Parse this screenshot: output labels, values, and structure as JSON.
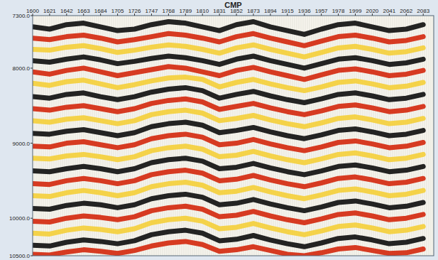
{
  "chart_data": {
    "type": "seismic",
    "x_label": "CMP",
    "x": [
      1600,
      1621,
      1642,
      1663,
      1684,
      1705,
      1726,
      1747,
      1768,
      1789,
      1810,
      1831,
      1852,
      1873,
      1894,
      1915,
      1936,
      1957,
      1978,
      1999,
      2020,
      2041,
      2062,
      2083
    ],
    "xlim": [
      1600,
      2096
    ],
    "xticks": [
      1600,
      1621,
      1642,
      1663,
      1684,
      1705,
      1726,
      1747,
      1768,
      1789,
      1810,
      1831,
      1852,
      1873,
      1894,
      1915,
      1936,
      1957,
      1978,
      1999,
      2020,
      2041,
      2062,
      2083
    ],
    "ylim": [
      7300,
      10500
    ],
    "yticks": [
      {
        "value": 7300,
        "label": "7300.0"
      },
      {
        "value": 8000,
        "label": "8000.0"
      },
      {
        "value": 9000,
        "label": "9000.0"
      },
      {
        "value": 10000,
        "label": "10000.0"
      },
      {
        "value": 10500,
        "label": "10500.0"
      }
    ],
    "series": [
      {
        "color": "#111111",
        "values": [
          7450,
          7480,
          7420,
          7400,
          7450,
          7500,
          7480,
          7420,
          7380,
          7400,
          7450,
          7500,
          7420,
          7380,
          7450,
          7500,
          7550,
          7480,
          7420,
          7400,
          7450,
          7500,
          7480,
          7420
        ]
      },
      {
        "color": "#d42a10",
        "values": [
          7600,
          7620,
          7580,
          7560,
          7600,
          7650,
          7620,
          7580,
          7540,
          7560,
          7600,
          7650,
          7580,
          7540,
          7600,
          7650,
          7700,
          7640,
          7580,
          7560,
          7600,
          7650,
          7630,
          7580
        ]
      },
      {
        "color": "#f4cf3c",
        "values": [
          7750,
          7760,
          7720,
          7700,
          7740,
          7790,
          7760,
          7720,
          7690,
          7710,
          7750,
          7800,
          7730,
          7690,
          7750,
          7800,
          7850,
          7790,
          7730,
          7710,
          7750,
          7800,
          7780,
          7730
        ]
      },
      {
        "color": "#111111",
        "values": [
          7900,
          7920,
          7880,
          7850,
          7890,
          7940,
          7910,
          7870,
          7840,
          7860,
          7900,
          7950,
          7880,
          7840,
          7900,
          7950,
          8000,
          7940,
          7880,
          7860,
          7900,
          7950,
          7930,
          7880
        ]
      },
      {
        "color": "#d42a10",
        "values": [
          8050,
          8080,
          8030,
          8000,
          8050,
          8100,
          8060,
          8020,
          7980,
          8000,
          8050,
          8100,
          8030,
          7990,
          8050,
          8100,
          8150,
          8090,
          8030,
          8010,
          8050,
          8100,
          8080,
          8030
        ]
      },
      {
        "color": "#f4cf3c",
        "values": [
          8200,
          8230,
          8180,
          8160,
          8210,
          8260,
          8220,
          8170,
          8130,
          8120,
          8150,
          8250,
          8190,
          8150,
          8210,
          8260,
          8300,
          8250,
          8190,
          8170,
          8210,
          8260,
          8240,
          8190
        ]
      },
      {
        "color": "#111111",
        "values": [
          8380,
          8400,
          8350,
          8330,
          8380,
          8420,
          8380,
          8320,
          8280,
          8260,
          8300,
          8400,
          8350,
          8310,
          8370,
          8420,
          8460,
          8410,
          8350,
          8330,
          8370,
          8420,
          8400,
          8350
        ]
      },
      {
        "color": "#d42a10",
        "values": [
          8540,
          8560,
          8520,
          8500,
          8540,
          8580,
          8540,
          8470,
          8430,
          8410,
          8450,
          8550,
          8510,
          8470,
          8530,
          8580,
          8620,
          8570,
          8510,
          8490,
          8530,
          8580,
          8560,
          8510
        ]
      },
      {
        "color": "#f4cf3c",
        "values": [
          8700,
          8720,
          8680,
          8660,
          8700,
          8740,
          8700,
          8620,
          8580,
          8560,
          8600,
          8700,
          8670,
          8630,
          8690,
          8740,
          8780,
          8730,
          8670,
          8650,
          8690,
          8740,
          8720,
          8670
        ]
      },
      {
        "color": "#111111",
        "values": [
          8870,
          8880,
          8840,
          8820,
          8860,
          8900,
          8860,
          8780,
          8740,
          8720,
          8760,
          8860,
          8830,
          8790,
          8850,
          8900,
          8940,
          8890,
          8830,
          8810,
          8850,
          8900,
          8880,
          8830
        ]
      },
      {
        "color": "#d42a10",
        "values": [
          9040,
          9050,
          9000,
          8980,
          9020,
          9060,
          9020,
          8940,
          8900,
          8880,
          8920,
          9020,
          9000,
          8950,
          9010,
          9060,
          9100,
          9050,
          8990,
          8970,
          9010,
          9060,
          9040,
          8990
        ]
      },
      {
        "color": "#f4cf3c",
        "values": [
          9200,
          9210,
          9170,
          9150,
          9180,
          9220,
          9180,
          9100,
          9060,
          9040,
          9080,
          9180,
          9160,
          9110,
          9170,
          9220,
          9260,
          9210,
          9150,
          9130,
          9170,
          9220,
          9200,
          9150
        ]
      },
      {
        "color": "#111111",
        "values": [
          9370,
          9380,
          9340,
          9310,
          9340,
          9380,
          9340,
          9260,
          9220,
          9200,
          9240,
          9340,
          9320,
          9270,
          9330,
          9380,
          9420,
          9370,
          9310,
          9290,
          9330,
          9380,
          9360,
          9310
        ]
      },
      {
        "color": "#d42a10",
        "values": [
          9540,
          9550,
          9500,
          9470,
          9500,
          9540,
          9500,
          9420,
          9380,
          9360,
          9400,
          9500,
          9480,
          9430,
          9490,
          9540,
          9580,
          9530,
          9470,
          9450,
          9490,
          9540,
          9520,
          9470
        ]
      },
      {
        "color": "#f4cf3c",
        "values": [
          9700,
          9710,
          9660,
          9630,
          9660,
          9700,
          9660,
          9580,
          9540,
          9520,
          9560,
          9660,
          9640,
          9590,
          9650,
          9700,
          9740,
          9690,
          9630,
          9610,
          9650,
          9700,
          9680,
          9630
        ]
      },
      {
        "color": "#111111",
        "values": [
          9870,
          9880,
          9830,
          9800,
          9820,
          9860,
          9820,
          9740,
          9700,
          9680,
          9720,
          9820,
          9800,
          9750,
          9810,
          9860,
          9900,
          9850,
          9790,
          9770,
          9810,
          9860,
          9840,
          9790
        ]
      },
      {
        "color": "#d42a10",
        "values": [
          10040,
          10050,
          10000,
          9970,
          9990,
          10020,
          9980,
          9900,
          9860,
          9840,
          9880,
          9980,
          9960,
          9910,
          9970,
          10020,
          10060,
          10010,
          9950,
          9930,
          9970,
          10020,
          10000,
          9950
        ]
      },
      {
        "color": "#f4cf3c",
        "values": [
          10200,
          10210,
          10160,
          10130,
          10150,
          10180,
          10140,
          10060,
          10020,
          10000,
          10040,
          10140,
          10120,
          10070,
          10130,
          10180,
          10220,
          10170,
          10110,
          10090,
          10130,
          10180,
          10160,
          10110
        ]
      },
      {
        "color": "#111111",
        "values": [
          10360,
          10370,
          10320,
          10290,
          10310,
          10340,
          10300,
          10220,
          10180,
          10160,
          10200,
          10300,
          10280,
          10230,
          10290,
          10340,
          10380,
          10330,
          10270,
          10250,
          10290,
          10340,
          10320,
          10270
        ]
      },
      {
        "color": "#d42a10",
        "values": [
          10480,
          10490,
          10450,
          10420,
          10440,
          10470,
          10430,
          10370,
          10330,
          10310,
          10350,
          10440,
          10420,
          10380,
          10430,
          10480,
          10500,
          10460,
          10410,
          10390,
          10430,
          10470,
          10460,
          10410
        ]
      }
    ]
  }
}
